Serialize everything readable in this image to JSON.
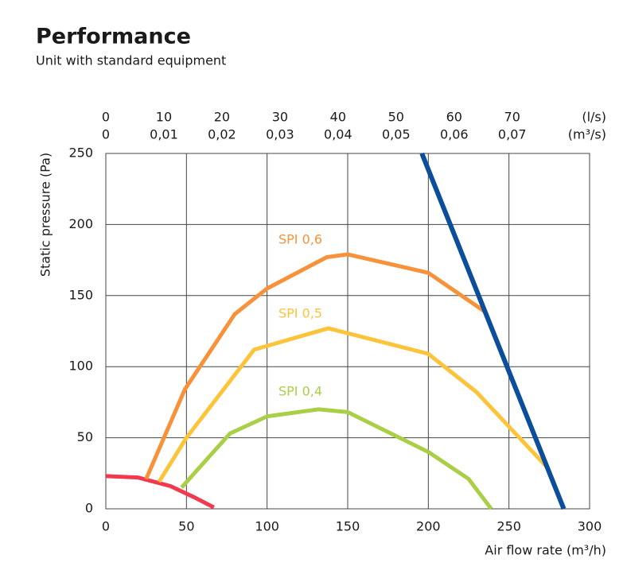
{
  "chart_data": {
    "type": "line",
    "title": "Performance",
    "subtitle": "Unit with standard equipment",
    "x_label": "Air flow rate (m³/h)",
    "y_label": "Static pressure (Pa)",
    "x2_unit": "(l/s)",
    "x3_unit": "(m³/s)",
    "xlim": [
      0,
      300
    ],
    "xticks": [
      0,
      50,
      100,
      150,
      200,
      250,
      300
    ],
    "ylim": [
      0,
      250
    ],
    "yticks": [
      0,
      50,
      100,
      150,
      200,
      250
    ],
    "x2lim": [
      0,
      83.33
    ],
    "x2ticks": [
      0,
      10,
      20,
      30,
      40,
      50,
      60,
      70
    ],
    "x3lim": [
      0,
      0.08333
    ],
    "x3ticks": [
      0,
      {
        "value": 0.01,
        "label": "0,01"
      },
      {
        "value": 0.02,
        "label": "0,02"
      },
      {
        "value": 0.03,
        "label": "0,03"
      },
      {
        "value": 0.04,
        "label": "0,04"
      },
      {
        "value": 0.05,
        "label": "0,05"
      },
      {
        "value": 0.06,
        "label": "0,06"
      },
      {
        "value": 0.07,
        "label": "0,07"
      }
    ],
    "grid": true,
    "series": [
      {
        "color": "#f2394f",
        "x": [
          0,
          20,
          40,
          55,
          67
        ],
        "values": [
          23,
          22,
          16,
          8,
          1
        ]
      },
      {
        "name": "SPI 0,6",
        "color": "#f7923a",
        "x": [
          25,
          49,
          80,
          100,
          137,
          150,
          200,
          236
        ],
        "values": [
          21,
          84,
          137,
          155,
          177,
          179,
          166,
          138
        ]
      },
      {
        "name": "SPI 0,5",
        "color": "#fcc43a",
        "x": [
          33,
          50,
          92,
          138,
          200,
          230,
          273
        ],
        "values": [
          19,
          50,
          112,
          127,
          109,
          82,
          30
        ]
      },
      {
        "name": "SPI 0,4",
        "color": "#a9cf46",
        "x": [
          47,
          77,
          100,
          132,
          150,
          200,
          225,
          239
        ],
        "values": [
          15,
          53,
          65,
          70,
          68,
          40,
          21,
          0
        ]
      },
      {
        "color": "#0c4e9b",
        "x": [
          196,
          284
        ],
        "values": [
          250,
          0
        ]
      }
    ]
  }
}
